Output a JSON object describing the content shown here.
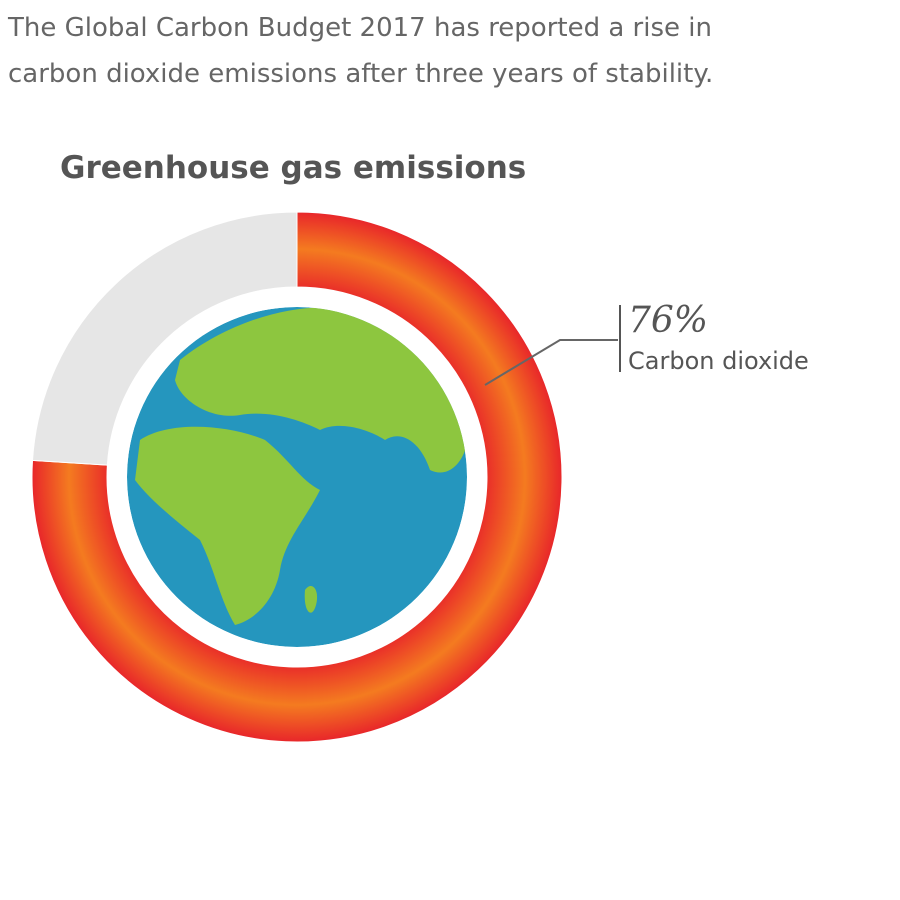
{
  "chart_data": {
    "type": "pie",
    "subtitle": [
      "The Global Carbon Budget 2017 has reported a rise in",
      "carbon dioxide emissions after three years of stability."
    ],
    "title": "Greenhouse gas emissions",
    "categories": [
      "Carbon dioxide",
      null
    ],
    "values": [
      76,
      24
    ],
    "value_labels": [
      "76%",
      null
    ],
    "colors": [
      "#f47b20",
      "#e6e6e6"
    ]
  }
}
